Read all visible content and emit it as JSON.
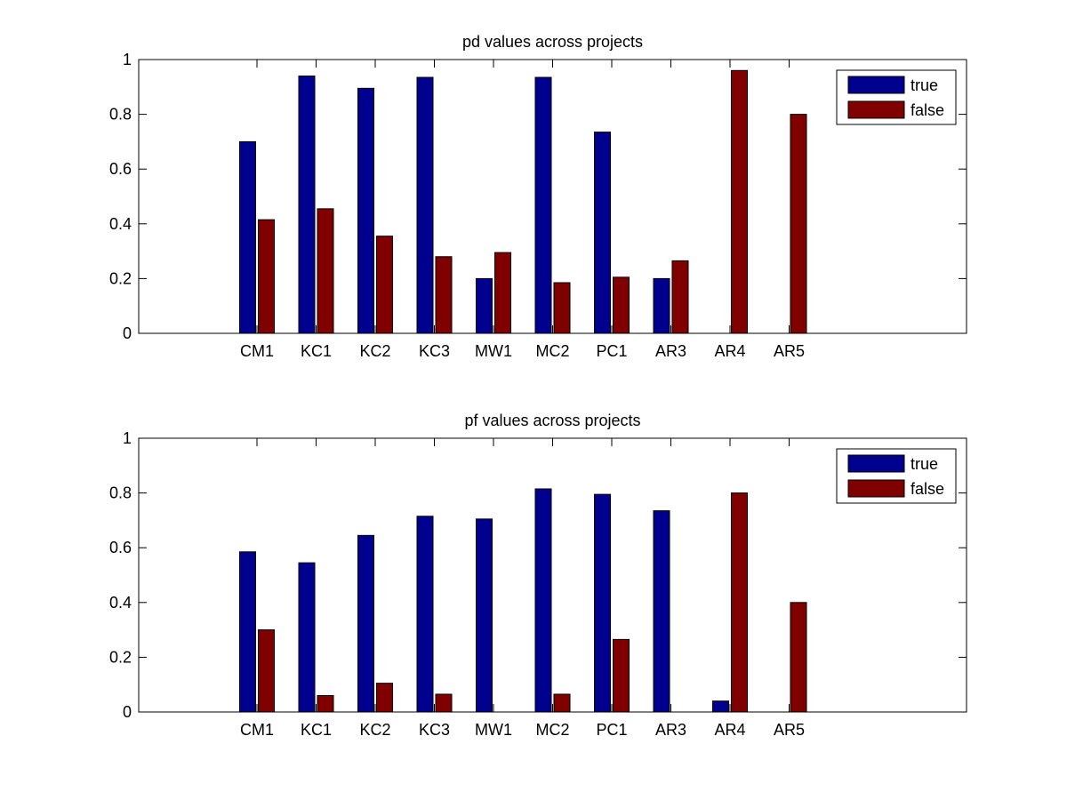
{
  "colors": {
    "true": "#00008f",
    "false": "#800000"
  },
  "chart_data": [
    {
      "type": "bar",
      "title": "pd values across projects",
      "xlabel": "",
      "ylabel": "",
      "categories": [
        "CM1",
        "KC1",
        "KC2",
        "KC3",
        "MW1",
        "MC2",
        "PC1",
        "AR3",
        "AR4",
        "AR5"
      ],
      "x_range": [
        -1,
        13
      ],
      "ylim": [
        0,
        1
      ],
      "yticks": [
        0,
        0.2,
        0.4,
        0.6,
        0.8,
        1
      ],
      "ytick_labels": [
        "0",
        "0.2",
        "0.4",
        "0.6",
        "0.8",
        "1"
      ],
      "grid": false,
      "legend_position": "top-right",
      "series": [
        {
          "name": "true",
          "values": [
            0.7,
            0.94,
            0.895,
            0.935,
            0.2,
            0.935,
            0.735,
            0.2,
            0,
            0
          ]
        },
        {
          "name": "false",
          "values": [
            0.415,
            0.455,
            0.355,
            0.28,
            0.295,
            0.185,
            0.205,
            0.265,
            0.96,
            0.8
          ]
        }
      ]
    },
    {
      "type": "bar",
      "title": "pf values across projects",
      "xlabel": "",
      "ylabel": "",
      "categories": [
        "CM1",
        "KC1",
        "KC2",
        "KC3",
        "MW1",
        "MC2",
        "PC1",
        "AR3",
        "AR4",
        "AR5"
      ],
      "x_range": [
        -1,
        13
      ],
      "ylim": [
        0,
        1
      ],
      "yticks": [
        0,
        0.2,
        0.4,
        0.6,
        0.8,
        1
      ],
      "ytick_labels": [
        "0",
        "0.2",
        "0.4",
        "0.6",
        "0.8",
        "1"
      ],
      "grid": false,
      "legend_position": "top-right",
      "series": [
        {
          "name": "true",
          "values": [
            0.585,
            0.545,
            0.645,
            0.715,
            0.705,
            0.815,
            0.795,
            0.735,
            0.04,
            0
          ]
        },
        {
          "name": "false",
          "values": [
            0.3,
            0.06,
            0.105,
            0.065,
            0,
            0.065,
            0.265,
            0,
            0.8,
            0.4
          ]
        }
      ]
    }
  ]
}
